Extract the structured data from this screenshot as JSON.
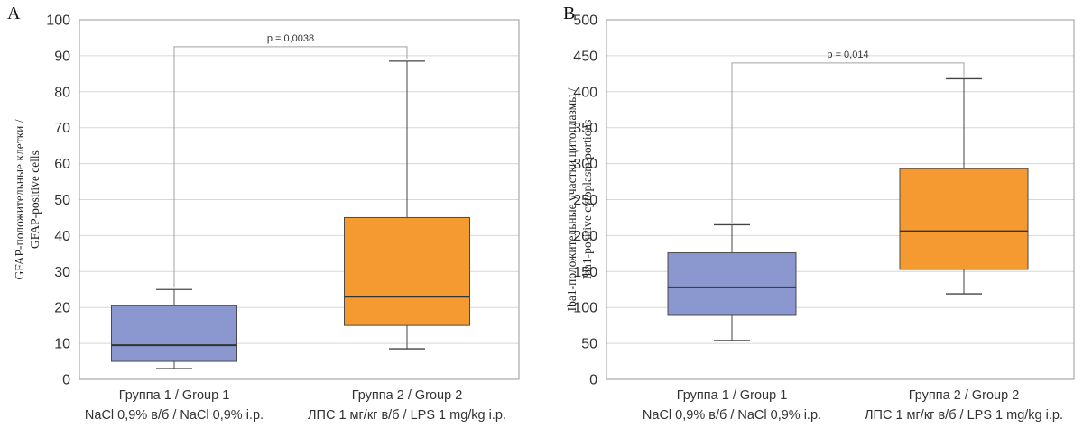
{
  "chart_data": [
    {
      "panel": "A",
      "type": "box",
      "ylabel_lines": [
        "GFAP-положительные клетки /",
        "GFAP-positive cells"
      ],
      "ylim": [
        0,
        100
      ],
      "yticks": [
        0,
        10,
        20,
        30,
        40,
        50,
        60,
        70,
        80,
        90,
        100
      ],
      "grid": true,
      "categories": [
        {
          "line1": "Группа 1 / Group 1",
          "line2": "NaCl 0,9% в/б / NaCl 0,9% i.p.",
          "color": "#8a98cf",
          "min": 3,
          "q1": 5,
          "median": 9.5,
          "q3": 20.5,
          "max": 25
        },
        {
          "line1": "Группа 2 / Group 2",
          "line2": "ЛПС 1 мг/кг в/б / LPS 1 mg/kg i.p.",
          "color": "#f59a30",
          "min": 8.5,
          "q1": 15,
          "median": 23,
          "q3": 45,
          "max": 88.5
        }
      ],
      "significance": {
        "label": "p = 0,0038",
        "y": 92.5,
        "left_bottom": 25,
        "right_bottom": 88.5
      }
    },
    {
      "panel": "B",
      "type": "box",
      "ylabel_lines": [
        "Iba1-положительные участки цитоплазмы /",
        "Iba1-positive cytoplasm portions"
      ],
      "ylim": [
        0,
        500
      ],
      "yticks": [
        0,
        50,
        100,
        150,
        200,
        250,
        300,
        350,
        400,
        450,
        500
      ],
      "grid": true,
      "categories": [
        {
          "line1": "Группа 1 / Group 1",
          "line2": "NaCl 0,9% в/б / NaCl 0,9% i.p.",
          "color": "#8a98cf",
          "min": 54,
          "q1": 89,
          "median": 128,
          "q3": 176,
          "max": 215
        },
        {
          "line1": "Группа 2 / Group 2",
          "line2": "ЛПС 1 мг/кг в/б / LPS 1 mg/kg i.p.",
          "color": "#f59a30",
          "min": 119,
          "q1": 153,
          "median": 206,
          "q3": 293,
          "max": 418
        }
      ],
      "significance": {
        "label": "p = 0,014",
        "y": 440,
        "left_bottom": 215,
        "right_bottom": 418
      }
    }
  ]
}
